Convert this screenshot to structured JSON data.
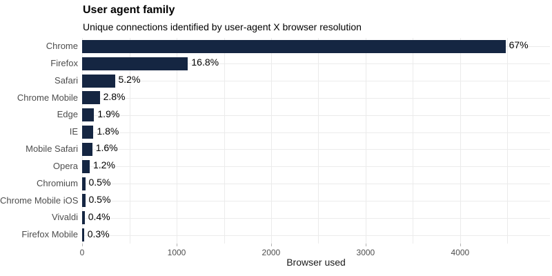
{
  "chart_data": {
    "type": "bar",
    "orientation": "horizontal",
    "title": "User agent family",
    "subtitle": "Unique connections identified by user-agent X browser resolution",
    "xlabel": "Browser used",
    "ylabel": "",
    "categories": [
      "Chrome",
      "Firefox",
      "Safari",
      "Chrome Mobile",
      "Edge",
      "IE",
      "Mobile Safari",
      "Opera",
      "Chromium",
      "Chrome Mobile iOS",
      "Vivaldi",
      "Firefox Mobile"
    ],
    "values": [
      4480,
      1120,
      347,
      187,
      127,
      120,
      107,
      80,
      33,
      33,
      27,
      20
    ],
    "percent_labels": [
      "67%",
      "16.8%",
      "5.2%",
      "2.8%",
      "1.9%",
      "1.8%",
      "1.6%",
      "1.2%",
      "0.5%",
      "0.5%",
      "0.4%",
      "0.3%"
    ],
    "x_ticks": [
      0,
      1000,
      2000,
      3000,
      4000
    ],
    "x_tick_labels": [
      "0",
      "1000",
      "2000",
      "3000",
      "4000"
    ],
    "x_minor_step": 500,
    "xlim": [
      0,
      4950
    ],
    "grid": true,
    "legend": false,
    "colors": {
      "bar": "#152642",
      "grid": "#ebebeb",
      "axis_text": "#4d4d4d",
      "axis_title": "#1a1a1a",
      "value_label": "#000000",
      "title_text": "#000000",
      "background": "#ffffff"
    }
  }
}
